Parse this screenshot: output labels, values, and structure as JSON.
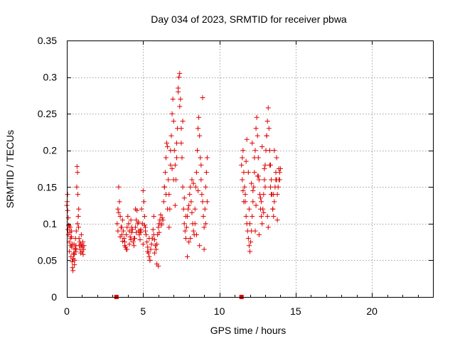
{
  "chart_data": {
    "type": "scatter",
    "title": "Day 034 of 2023, SRMTID for receiver pbwa",
    "xlabel": "GPS time / hours",
    "ylabel": "SRMTID / TECUs",
    "xlim": [
      0,
      24
    ],
    "ylim": [
      0,
      0.35
    ],
    "x_ticks": [
      0,
      5,
      10,
      15,
      20
    ],
    "y_ticks": [
      0,
      0.05,
      0.1,
      0.15,
      0.2,
      0.25,
      0.3,
      0.35
    ],
    "x_tick_labels": [
      "0",
      "5",
      "10",
      "15",
      "20"
    ],
    "y_tick_labels": [
      "0",
      "0.05",
      "0.1",
      "0.15",
      "0.2",
      "0.25",
      "0.3",
      "0.35"
    ],
    "grid": true,
    "marker": "plus",
    "color": "#e00000",
    "zero_markers": {
      "x": [
        3.25,
        11.45
      ],
      "y": [
        0,
        0
      ]
    },
    "series": [
      {
        "x": [
          0.0,
          0.02,
          0.05,
          0.07,
          0.1,
          0.12,
          0.15,
          0.17,
          0.2,
          0.22,
          0.25,
          0.27,
          0.3,
          0.32,
          0.35,
          0.37,
          0.4,
          0.42,
          0.45,
          0.47,
          0.5,
          0.52,
          0.55,
          0.57,
          0.6,
          0.62,
          0.65,
          0.67,
          0.7,
          0.72,
          0.75,
          0.77,
          0.8,
          0.82,
          0.85,
          0.87,
          0.9,
          0.92,
          0.95,
          0.97,
          1.0,
          1.02,
          1.05,
          1.07,
          1.1,
          1.12,
          0.75,
          0.78,
          0.7,
          0.05,
          0.1,
          0.15,
          0.25,
          0.35,
          0.45,
          0.55,
          0.3,
          0.4,
          0.5,
          0.6,
          3.3,
          3.35,
          3.4,
          3.45,
          3.5,
          3.55,
          3.6,
          3.65,
          3.7,
          3.75,
          3.8,
          3.85,
          3.9,
          3.95,
          4.0,
          4.05,
          4.1,
          4.15,
          4.2,
          4.25,
          4.3,
          4.35,
          4.4,
          4.45,
          4.5,
          4.55,
          4.6,
          4.65,
          4.7,
          4.75,
          4.8,
          4.85,
          4.9,
          4.95,
          5.0,
          5.05,
          5.1,
          5.15,
          5.2,
          5.25,
          5.3,
          5.35,
          5.4,
          5.45,
          5.5,
          5.55,
          5.6,
          5.65,
          5.7,
          5.75,
          5.8,
          5.85,
          5.9,
          5.95,
          6.0,
          6.05,
          6.1,
          6.15,
          6.2,
          6.25,
          3.35,
          3.5,
          3.65,
          3.8,
          3.95,
          4.1,
          4.25,
          4.4,
          4.55,
          4.7,
          4.85,
          5.0,
          5.15,
          5.3,
          5.45,
          5.6,
          5.75,
          5.9,
          6.05,
          6.2,
          3.4,
          3.6,
          3.9,
          4.2,
          4.5,
          4.8,
          5.1,
          5.4,
          5.7,
          6.0,
          6.3,
          6.35,
          6.4,
          6.45,
          6.5,
          6.55,
          6.6,
          6.65,
          6.7,
          6.75,
          6.8,
          6.85,
          6.9,
          6.95,
          7.0,
          7.05,
          7.1,
          7.15,
          7.2,
          7.25,
          7.3,
          7.35,
          7.4,
          7.45,
          7.5,
          7.55,
          7.6,
          7.65,
          7.7,
          7.75,
          7.8,
          7.85,
          7.9,
          7.95,
          8.0,
          8.05,
          8.1,
          8.15,
          8.2,
          8.25,
          8.3,
          8.35,
          8.4,
          8.45,
          8.5,
          8.55,
          8.6,
          8.65,
          8.7,
          8.75,
          8.8,
          8.85,
          8.9,
          8.95,
          9.0,
          9.05,
          9.1,
          9.15,
          9.2,
          6.4,
          6.6,
          6.8,
          7.0,
          7.2,
          7.4,
          7.6,
          7.8,
          8.0,
          8.2,
          8.4,
          8.6,
          8.8,
          9.0,
          9.2,
          6.5,
          6.7,
          6.9,
          7.1,
          7.3,
          7.5,
          7.7,
          7.9,
          8.1,
          8.3,
          8.5,
          8.7,
          8.9,
          9.1,
          11.45,
          11.5,
          11.55,
          11.6,
          11.65,
          11.7,
          11.75,
          11.8,
          11.85,
          11.9,
          11.95,
          12.0,
          12.05,
          12.1,
          12.15,
          12.2,
          12.25,
          12.3,
          12.35,
          12.4,
          12.45,
          12.5,
          12.55,
          12.6,
          12.65,
          12.7,
          12.75,
          12.8,
          12.85,
          12.9,
          12.95,
          13.0,
          13.05,
          13.1,
          13.15,
          13.2,
          13.25,
          13.3,
          13.35,
          13.4,
          13.45,
          13.5,
          13.55,
          13.6,
          13.65,
          13.7,
          13.75,
          13.8,
          13.85,
          13.9,
          13.95,
          14.0,
          11.5,
          11.6,
          11.7,
          11.8,
          11.9,
          12.0,
          12.1,
          12.2,
          12.3,
          12.4,
          12.5,
          12.6,
          12.7,
          12.8,
          12.9,
          13.0,
          13.1,
          13.2,
          13.3,
          13.4,
          13.5,
          13.6,
          13.7,
          13.8,
          13.9,
          11.55,
          11.75,
          11.95,
          12.15,
          12.35,
          12.55,
          12.75,
          12.95,
          13.15,
          13.35,
          13.55,
          13.75,
          13.95
        ],
        "y": [
          0.125,
          0.13,
          0.118,
          0.092,
          0.085,
          0.098,
          0.075,
          0.062,
          0.088,
          0.095,
          0.07,
          0.055,
          0.082,
          0.068,
          0.048,
          0.04,
          0.036,
          0.052,
          0.06,
          0.072,
          0.058,
          0.05,
          0.066,
          0.08,
          0.07,
          0.09,
          0.15,
          0.178,
          0.17,
          0.14,
          0.11,
          0.095,
          0.08,
          0.07,
          0.075,
          0.065,
          0.06,
          0.072,
          0.085,
          0.07,
          0.062,
          0.068,
          0.075,
          0.058,
          0.065,
          0.07,
          0.11,
          0.12,
          0.1,
          0.14,
          0.108,
          0.097,
          0.08,
          0.072,
          0.058,
          0.065,
          0.09,
          0.052,
          0.044,
          0.062,
          0.1,
          0.12,
          0.15,
          0.13,
          0.11,
          0.095,
          0.085,
          0.105,
          0.09,
          0.08,
          0.075,
          0.068,
          0.085,
          0.095,
          0.11,
          0.1,
          0.09,
          0.082,
          0.078,
          0.088,
          0.092,
          0.075,
          0.07,
          0.08,
          0.095,
          0.105,
          0.118,
          0.1,
          0.09,
          0.085,
          0.078,
          0.088,
          0.12,
          0.1,
          0.145,
          0.13,
          0.11,
          0.095,
          0.085,
          0.075,
          0.068,
          0.06,
          0.055,
          0.05,
          0.065,
          0.072,
          0.08,
          0.092,
          0.085,
          0.078,
          0.07,
          0.065,
          0.072,
          0.085,
          0.095,
          0.1,
          0.105,
          0.112,
          0.098,
          0.108,
          0.09,
          0.082,
          0.076,
          0.07,
          0.065,
          0.072,
          0.095,
          0.08,
          0.088,
          0.102,
          0.092,
          0.072,
          0.09,
          0.062,
          0.05,
          0.08,
          0.06,
          0.045,
          0.088,
          0.1,
          0.115,
          0.095,
          0.065,
          0.105,
          0.12,
          0.09,
          0.098,
          0.08,
          0.11,
          0.042,
          0.105,
          0.13,
          0.15,
          0.17,
          0.19,
          0.21,
          0.205,
          0.16,
          0.14,
          0.12,
          0.18,
          0.22,
          0.25,
          0.27,
          0.24,
          0.2,
          0.18,
          0.16,
          0.19,
          0.23,
          0.28,
          0.3,
          0.305,
          0.27,
          0.23,
          0.19,
          0.15,
          0.12,
          0.1,
          0.09,
          0.08,
          0.095,
          0.11,
          0.12,
          0.125,
          0.14,
          0.15,
          0.13,
          0.115,
          0.1,
          0.09,
          0.085,
          0.12,
          0.15,
          0.17,
          0.2,
          0.23,
          0.245,
          0.22,
          0.19,
          0.16,
          0.14,
          0.13,
          0.11,
          0.095,
          0.12,
          0.15,
          0.17,
          0.19,
          0.15,
          0.12,
          0.2,
          0.16,
          0.21,
          0.26,
          0.24,
          0.11,
          0.075,
          0.16,
          0.1,
          0.145,
          0.18,
          0.065,
          0.13,
          0.14,
          0.095,
          0.175,
          0.125,
          0.285,
          0.21,
          0.135,
          0.055,
          0.08,
          0.155,
          0.085,
          0.07,
          0.272,
          0.1,
          0.18,
          0.19,
          0.2,
          0.17,
          0.15,
          0.13,
          0.11,
          0.1,
          0.09,
          0.08,
          0.07,
          0.062,
          0.075,
          0.09,
          0.11,
          0.13,
          0.15,
          0.17,
          0.2,
          0.23,
          0.245,
          0.22,
          0.19,
          0.16,
          0.14,
          0.12,
          0.11,
          0.1,
          0.12,
          0.14,
          0.16,
          0.18,
          0.2,
          0.22,
          0.24,
          0.258,
          0.23,
          0.2,
          0.18,
          0.16,
          0.14,
          0.12,
          0.11,
          0.13,
          0.15,
          0.17,
          0.16,
          0.14,
          0.15,
          0.16,
          0.17,
          0.175,
          0.16,
          0.13,
          0.14,
          0.215,
          0.17,
          0.1,
          0.155,
          0.145,
          0.19,
          0.125,
          0.165,
          0.085,
          0.135,
          0.205,
          0.115,
          0.15,
          0.22,
          0.095,
          0.18,
          0.14,
          0.12,
          0.2,
          0.16,
          0.105,
          0.175,
          0.145,
          0.185,
          0.12,
          0.21,
          0.09,
          0.165,
          0.13,
          0.175,
          0.11,
          0.15,
          0.14,
          0.19,
          0.16
        ]
      }
    ]
  }
}
